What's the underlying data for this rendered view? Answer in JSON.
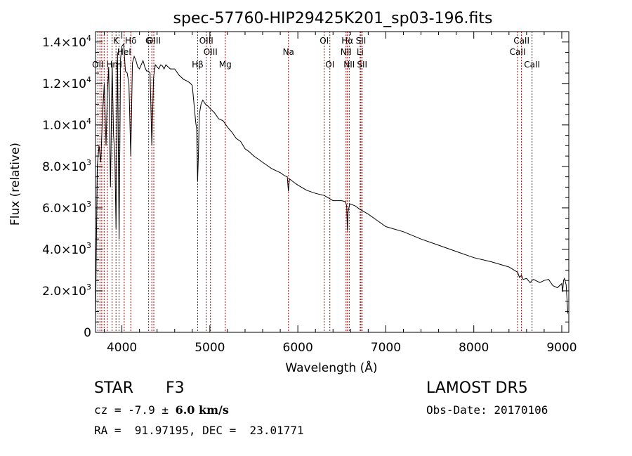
{
  "chart_data": {
    "type": "line",
    "title": "spec-57760-HIP29425K201_sp03-196.fits",
    "xlabel": "Wavelength (Å)",
    "ylabel": "Flux (relative)",
    "xlim": [
      3700,
      9080
    ],
    "ylim": [
      0,
      14500
    ],
    "x_ticks": [
      4000,
      5000,
      6000,
      7000,
      8000,
      9000
    ],
    "x_tick_labels": [
      "4000",
      "5000",
      "6000",
      "7000",
      "8000",
      "9000"
    ],
    "y_ticks": [
      0,
      2000,
      4000,
      6000,
      8000,
      10000,
      12000,
      14000
    ],
    "y_tick_labels": [
      {
        "mant": "0",
        "exp": ""
      },
      {
        "mant": "2.0×10",
        "exp": "3"
      },
      {
        "mant": "4.0×10",
        "exp": "3"
      },
      {
        "mant": "6.0×10",
        "exp": "3"
      },
      {
        "mant": "8.0×10",
        "exp": "3"
      },
      {
        "mant": "1.0×10",
        "exp": "4"
      },
      {
        "mant": "1.2×10",
        "exp": "4"
      },
      {
        "mant": "1.4×10",
        "exp": "4"
      }
    ],
    "series": [
      {
        "x": [
          3700,
          3720,
          3740,
          3760,
          3780,
          3800,
          3820,
          3835,
          3850,
          3870,
          3889,
          3905,
          3920,
          3933,
          3950,
          3968,
          3985,
          4000,
          4020,
          4040,
          4060,
          4080,
          4101,
          4120,
          4140,
          4160,
          4180,
          4200,
          4220,
          4240,
          4260,
          4280,
          4300,
          4320,
          4340,
          4360,
          4380,
          4400,
          4420,
          4440,
          4460,
          4480,
          4500,
          4550,
          4600,
          4650,
          4700,
          4750,
          4780,
          4800,
          4820,
          4840,
          4850,
          4861,
          4870,
          4880,
          4900,
          4920,
          4950,
          4980,
          5000,
          5050,
          5100,
          5150,
          5200,
          5250,
          5300,
          5350,
          5400,
          5450,
          5500,
          5550,
          5600,
          5650,
          5700,
          5750,
          5800,
          5850,
          5880,
          5893,
          5905,
          5950,
          6000,
          6100,
          6200,
          6300,
          6400,
          6500,
          6540,
          6555,
          6563,
          6570,
          6590,
          6650,
          6700,
          6800,
          6900,
          7000,
          7200,
          7400,
          7600,
          7800,
          8000,
          8200,
          8400,
          8498,
          8520,
          8542,
          8560,
          8600,
          8640,
          8662,
          8680,
          8750,
          8800,
          8850,
          8900,
          8950,
          9000,
          9010,
          9020,
          9030,
          9050,
          9070
        ],
        "y": [
          500,
          8000,
          9000,
          8200,
          10500,
          12000,
          9000,
          11500,
          12800,
          7000,
          13000,
          9500,
          8500,
          5000,
          13500,
          4500,
          13200,
          13800,
          13900,
          12600,
          12500,
          12000,
          8500,
          13000,
          13300,
          13100,
          12800,
          12700,
          12900,
          13100,
          12800,
          12600,
          12600,
          12500,
          9000,
          12300,
          12900,
          12800,
          12700,
          12900,
          12850,
          12700,
          12900,
          12700,
          12700,
          12400,
          12200,
          12100,
          12000,
          11900,
          11000,
          10100,
          9800,
          7300,
          8600,
          10500,
          11000,
          11200,
          11000,
          10900,
          10800,
          10600,
          10300,
          10200,
          9900,
          9650,
          9350,
          9200,
          8850,
          8700,
          8500,
          8350,
          8200,
          8050,
          7900,
          7800,
          7700,
          7550,
          7500,
          6800,
          7400,
          7250,
          7100,
          6850,
          6700,
          6600,
          6350,
          6350,
          6300,
          6100,
          4900,
          5800,
          6200,
          6100,
          5950,
          5700,
          5400,
          5100,
          4850,
          4500,
          4200,
          3900,
          3600,
          3400,
          3150,
          2900,
          2650,
          2750,
          2550,
          2600,
          2400,
          2500,
          2550,
          2400,
          2500,
          2550,
          2250,
          2150,
          2350,
          1950,
          2500,
          2600,
          2300,
          900
        ]
      }
    ],
    "lines": [
      {
        "x": 3727,
        "label": "OII",
        "row": 3
      },
      {
        "x": 3750,
        "label": "",
        "row": 0
      },
      {
        "x": 3771,
        "label": "",
        "row": 0
      },
      {
        "x": 3798,
        "label": "",
        "row": 0
      },
      {
        "x": 3835,
        "label": "",
        "row": 0
      },
      {
        "x": 3889,
        "label": "Hη",
        "row": 3
      },
      {
        "x": 3933,
        "label": "K",
        "row": 1
      },
      {
        "x": 3968,
        "label": "H",
        "row": 3
      },
      {
        "x": 4026,
        "label": "HeI",
        "row": 2
      },
      {
        "x": 4101,
        "label": "Hδ",
        "row": 1
      },
      {
        "x": 4304,
        "label": "G",
        "row": 1
      },
      {
        "x": 4340,
        "label": "",
        "row": 0
      },
      {
        "x": 4363,
        "label": "OIII",
        "row": 1
      },
      {
        "x": 4861,
        "label": "Hβ",
        "row": 3
      },
      {
        "x": 4959,
        "label": "OIII",
        "row": 1
      },
      {
        "x": 5007,
        "label": "OIII",
        "row": 2
      },
      {
        "x": 5175,
        "label": "Mg",
        "row": 3
      },
      {
        "x": 5893,
        "label": "Na",
        "row": 2
      },
      {
        "x": 6300,
        "label": "OI",
        "row": 1
      },
      {
        "x": 6364,
        "label": "OI",
        "row": 3
      },
      {
        "x": 6548,
        "label": "NII",
        "row": 2
      },
      {
        "x": 6563,
        "label": "Hα",
        "row": 1
      },
      {
        "x": 6584,
        "label": "NII",
        "row": 3
      },
      {
        "x": 6708,
        "label": "Li",
        "row": 2
      },
      {
        "x": 6717,
        "label": "SII",
        "row": 1
      },
      {
        "x": 6731,
        "label": "SII",
        "row": 3
      },
      {
        "x": 8498,
        "label": "CaII",
        "row": 2
      },
      {
        "x": 8542,
        "label": "CaII",
        "row": 1
      },
      {
        "x": 8662,
        "label": "CaII",
        "row": 3
      }
    ],
    "grid": false,
    "legend": "none"
  },
  "info": {
    "class_label": "STAR",
    "subclass": "F3",
    "survey": "LAMOST DR5",
    "cz_prefix": "cz = -7.9 ± ",
    "cz_value": "6.0 km/s",
    "obs_date": "Obs-Date: 20170106",
    "coords": "RA =  91.97195, DEC =  23.01771"
  }
}
